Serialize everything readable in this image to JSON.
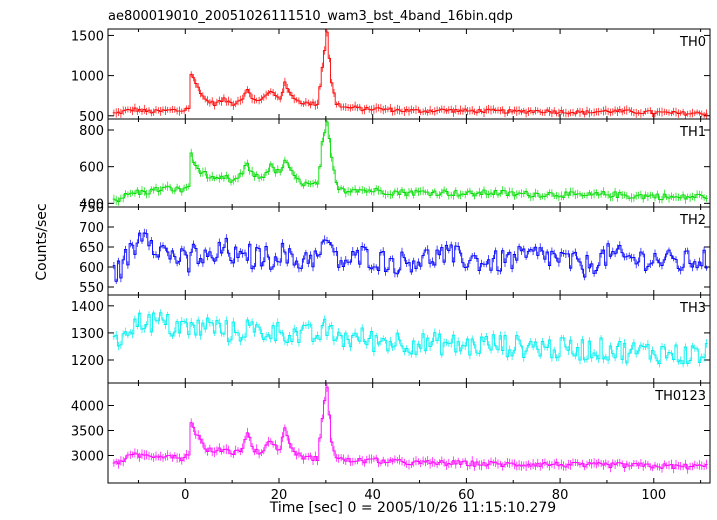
{
  "chart_data": {
    "type": "line",
    "title": "ae800019010_20051026111510_wam3_bst_4band_16bin.qdp",
    "xlabel": "Time [sec] 0 = 2005/10/26 11:15:10.279",
    "ylabel": "Counts/sec",
    "xlim": [
      -16.5,
      112
    ],
    "xticks": [
      0,
      20,
      40,
      60,
      80,
      100
    ],
    "x": [
      -15,
      -13,
      -11,
      -9,
      -7,
      -5,
      -3,
      -1,
      0.5,
      1,
      2,
      4,
      6,
      8,
      10,
      12,
      13,
      14,
      16,
      18,
      20,
      21,
      22,
      24,
      26,
      28,
      29,
      30,
      31,
      32,
      34,
      36,
      38,
      40,
      45,
      50,
      55,
      60,
      65,
      70,
      75,
      80,
      85,
      90,
      95,
      100,
      105,
      110
    ],
    "panels": [
      {
        "name": "TH0",
        "color": "#ff0000",
        "ylim": [
          460,
          1580
        ],
        "yticks": [
          500,
          1000,
          1500
        ],
        "values": [
          530,
          560,
          580,
          560,
          550,
          560,
          570,
          560,
          600,
          1020,
          900,
          700,
          650,
          700,
          650,
          720,
          850,
          700,
          700,
          800,
          720,
          900,
          780,
          680,
          650,
          650,
          1100,
          1550,
          900,
          650,
          600,
          600,
          580,
          590,
          570,
          560,
          570,
          560,
          560,
          550,
          560,
          550,
          540,
          560,
          550,
          540,
          530,
          530
        ]
      },
      {
        "name": "TH1",
        "color": "#00dd00",
        "ylim": [
          380,
          860
        ],
        "yticks": [
          400,
          600,
          800
        ],
        "values": [
          420,
          440,
          460,
          460,
          470,
          480,
          480,
          470,
          500,
          660,
          600,
          560,
          520,
          540,
          520,
          560,
          620,
          560,
          540,
          600,
          560,
          640,
          580,
          520,
          500,
          500,
          720,
          830,
          650,
          500,
          470,
          480,
          470,
          470,
          460,
          460,
          460,
          450,
          460,
          450,
          450,
          450,
          440,
          450,
          440,
          440,
          430,
          440
        ]
      },
      {
        "name": "TH2",
        "color": "#0000ff",
        "ylim": [
          530,
          750
        ],
        "yticks": [
          550,
          600,
          650,
          700,
          750
        ],
        "values": [
          580,
          620,
          650,
          700,
          660,
          640,
          630,
          620,
          600,
          640,
          630,
          620,
          620,
          650,
          630,
          610,
          640,
          620,
          630,
          620,
          640,
          630,
          620,
          610,
          630,
          620,
          640,
          680,
          630,
          620,
          610,
          620,
          630,
          620,
          610,
          620,
          630,
          620,
          610,
          620,
          630,
          620,
          600,
          630,
          620,
          620,
          610,
          620
        ]
      },
      {
        "name": "TH3",
        "color": "#00f0f0",
        "ylim": [
          1115,
          1440
        ],
        "yticks": [
          1200,
          1300,
          1400
        ],
        "values": [
          1250,
          1320,
          1330,
          1350,
          1340,
          1340,
          1320,
          1330,
          1300,
          1320,
          1310,
          1330,
          1320,
          1310,
          1300,
          1310,
          1320,
          1310,
          1300,
          1310,
          1300,
          1310,
          1300,
          1290,
          1290,
          1290,
          1300,
          1320,
          1290,
          1290,
          1280,
          1280,
          1280,
          1270,
          1270,
          1260,
          1260,
          1250,
          1260,
          1250,
          1250,
          1240,
          1240,
          1240,
          1230,
          1230,
          1220,
          1220
        ]
      },
      {
        "name": "TH0123",
        "color": "#ff00ff",
        "ylim": [
          2450,
          4450
        ],
        "yticks": [
          3000,
          3500,
          4000
        ],
        "values": [
          2850,
          2950,
          3000,
          3000,
          3000,
          3000,
          3000,
          2950,
          3000,
          3700,
          3450,
          3150,
          3050,
          3150,
          3050,
          3150,
          3500,
          3150,
          3050,
          3300,
          3100,
          3600,
          3200,
          3000,
          2950,
          2950,
          3700,
          4400,
          3300,
          2950,
          2900,
          2900,
          2900,
          2900,
          2870,
          2850,
          2850,
          2840,
          2830,
          2820,
          2830,
          2820,
          2800,
          2810,
          2800,
          2790,
          2780,
          2780
        ]
      }
    ]
  }
}
